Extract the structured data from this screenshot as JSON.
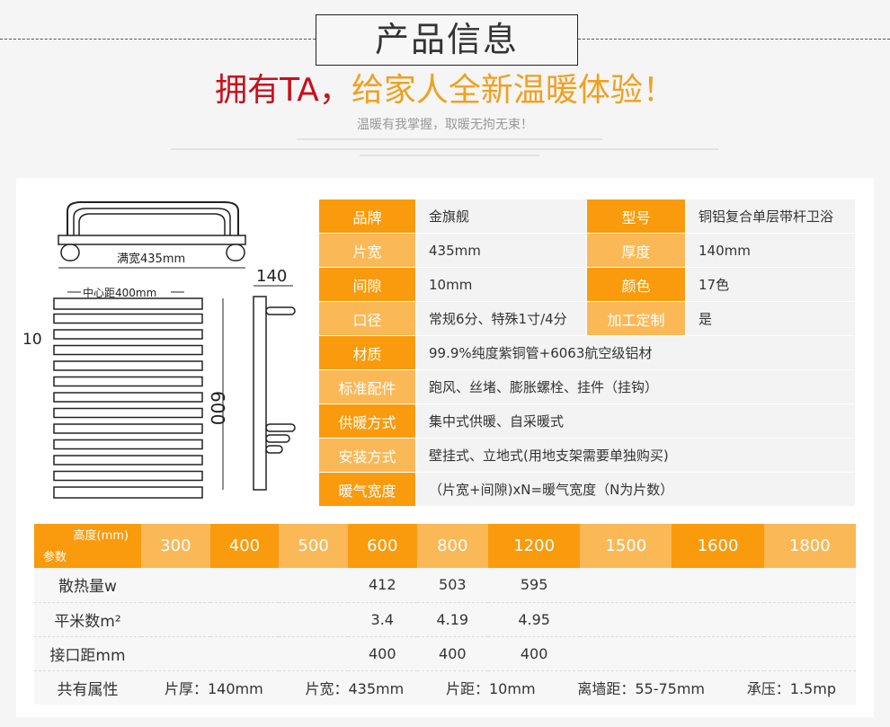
{
  "header": {
    "title": "产品信息",
    "slogan_red": "拥有TA，",
    "slogan_orange": "给家人全新温暖体验！",
    "subtitle": "温暖有我掌握，取暖无拘无束！"
  },
  "diagram": {
    "full_width": "满宽435mm",
    "center_distance": "中心距400mm",
    "gap": "10",
    "height": "600",
    "depth": "140"
  },
  "specs": [
    {
      "l1": "品牌",
      "v1": "金旗舰",
      "l2": "型号",
      "v2": "铜铝复合单层带杆卫浴"
    },
    {
      "l1": "片宽",
      "v1": "435mm",
      "l2": "厚度",
      "v2": "140mm"
    },
    {
      "l1": "间隙",
      "v1": "10mm",
      "l2": "颜色",
      "v2": "17色"
    },
    {
      "l1": "口径",
      "v1": "常规6分、特殊1寸/4分",
      "l2": "加工定制",
      "v2": "是"
    },
    {
      "l1": "材质",
      "v1": "99.9%纯度紫铜管+6063航空级铝材"
    },
    {
      "l1": "标准配件",
      "v1": "跑风、丝堵、膨胀螺栓、挂件（挂钩）"
    },
    {
      "l1": "供暖方式",
      "v1": "集中式供暖、自采暖式"
    },
    {
      "l1": "安装方式",
      "v1": "壁挂式、立地式(用地支架需要单独购买)"
    },
    {
      "l1": "暖气宽度",
      "v1": "（片宽+间隙)xN=暖气宽度（N为片数）"
    }
  ],
  "table": {
    "corner_top": "高度(mm)",
    "corner_bottom": "参数",
    "heights": [
      "300",
      "400",
      "500",
      "600",
      "800",
      "1200",
      "1500",
      "1600",
      "1800"
    ],
    "rows": [
      {
        "label": "散热量w",
        "values": [
          "",
          "",
          "",
          "412",
          "503",
          "595",
          "",
          "",
          ""
        ]
      },
      {
        "label": "平米数m²",
        "values": [
          "",
          "",
          "",
          "3.4",
          "4.19",
          "4.95",
          "",
          "",
          ""
        ]
      },
      {
        "label": "接口距mm",
        "values": [
          "",
          "",
          "",
          "400",
          "400",
          "400",
          "",
          "",
          ""
        ]
      }
    ],
    "common_label": "共有属性",
    "common": [
      "片厚：140mm",
      "片宽：435mm",
      "片距：10mm",
      "离墙距：55-75mm",
      "承压：1.5mp"
    ]
  },
  "colors": {
    "orange_dark": "#f99b0d",
    "orange_light": "#fbb857",
    "red": "#c8101d"
  }
}
